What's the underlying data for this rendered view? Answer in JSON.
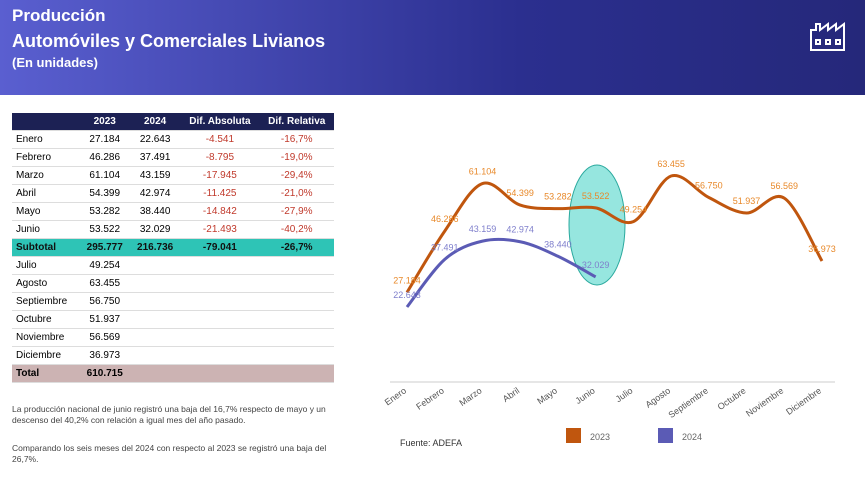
{
  "header": {
    "title": "Producción",
    "subtitle": "Automóviles y Comerciales Livianos",
    "units": "(En unidades)"
  },
  "table": {
    "columns": [
      "2023",
      "2024",
      "Dif. Absoluta",
      "Dif. Relativa"
    ],
    "rows": [
      [
        "Enero",
        "27.184",
        "22.643",
        "-4.541",
        "-16,7%"
      ],
      [
        "Febrero",
        "46.286",
        "37.491",
        "-8.795",
        "-19,0%"
      ],
      [
        "Marzo",
        "61.104",
        "43.159",
        "-17.945",
        "-29,4%"
      ],
      [
        "Abril",
        "54.399",
        "42.974",
        "-11.425",
        "-21,0%"
      ],
      [
        "Mayo",
        "53.282",
        "38.440",
        "-14.842",
        "-27,9%"
      ],
      [
        "Junio",
        "53.522",
        "32.029",
        "-21.493",
        "-40,2%"
      ],
      [
        "Subtotal",
        "295.777",
        "216.736",
        "-79.041",
        "-26,7%"
      ],
      [
        "Julio",
        "49.254"
      ],
      [
        "Agosto",
        "63.455"
      ],
      [
        "Septiembre",
        "56.750"
      ],
      [
        "Octubre",
        "51.937"
      ],
      [
        "Noviembre",
        "56.569"
      ],
      [
        "Diciembre",
        "36.973"
      ],
      [
        "Total",
        "610.715"
      ]
    ]
  },
  "notes": [
    "La producción nacional de junio registró una baja del 16,7% respecto de mayo y un descenso del 40,2% con relación a igual mes del año pasado.",
    "Comparando los seis meses del 2024 con respecto al 2023 se registró una baja del 26,7%."
  ],
  "chart_data": {
    "type": "line",
    "source": "Fuente: ADEFA",
    "categories": [
      "Enero",
      "Febrero",
      "Marzo",
      "Abril",
      "Mayo",
      "Junio",
      "Julio",
      "Agosto",
      "Septiembre",
      "Octubre",
      "Noviembre",
      "Diciembre"
    ],
    "series": [
      {
        "name": "2023",
        "color": "#c0560e",
        "values": [
          27184,
          46286,
          61104,
          54399,
          53282,
          53522,
          49254,
          63455,
          56750,
          51937,
          56569,
          36973
        ],
        "value_labels": [
          "27.184",
          "46.286",
          "61.104",
          "54.399",
          "53.282",
          "53.522",
          "49.254",
          "63.455",
          "56.750",
          "51.937",
          "56.569",
          "36.973"
        ]
      },
      {
        "name": "2024",
        "color": "#5b5bb5",
        "values": [
          22643,
          37491,
          43159,
          42974,
          38440,
          32029,
          null,
          null,
          null,
          null,
          null,
          null
        ],
        "value_labels": [
          "22.643",
          "37.491",
          "43.159",
          "42.974",
          "38.440",
          "32.029",
          null,
          null,
          null,
          null,
          null,
          null
        ]
      }
    ],
    "legend": "bottom"
  }
}
